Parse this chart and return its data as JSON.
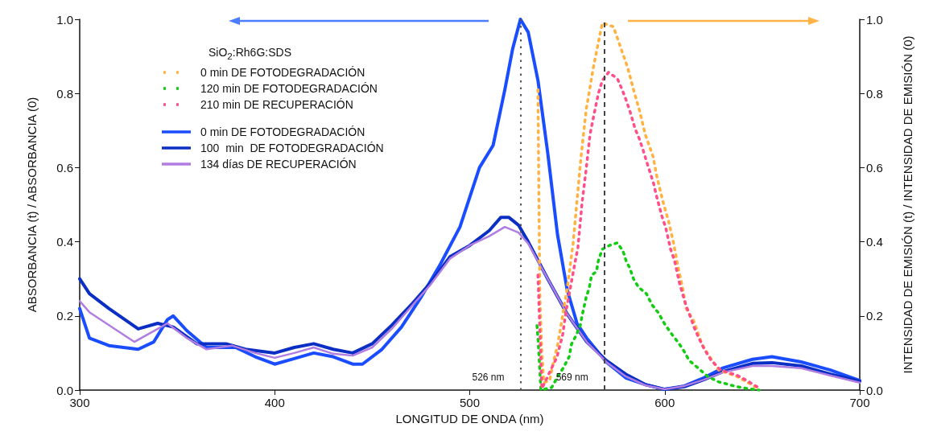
{
  "chart_data": {
    "type": "line",
    "xlabel": "LONGITUD DE ONDA (nm)",
    "ylabel": "ABSORBANCIA (t) / ABSORBANCIA (0)",
    "y2label": "INTENSIDAD DE EMISIÓN (t) / INTENSIDAD DE EMISIÓN (0)",
    "legend_title": "SiO$_{2}$:Rh6G:SDS",
    "legend": "top left",
    "grid": false,
    "marker": "none",
    "xlim": [
      300,
      700
    ],
    "xticks": [
      300,
      400,
      500,
      600,
      700
    ],
    "ylim": [
      0,
      1
    ],
    "yticks": [
      {
        "value": 0,
        "label": "0.0"
      },
      0.2,
      0.4,
      0.6,
      0.8,
      {
        "value": 1,
        "label": "1.0"
      }
    ],
    "y2lim": [
      0,
      1
    ],
    "y2ticks": [
      {
        "value": 0,
        "label": "0.0"
      },
      0.2,
      0.4,
      0.6,
      0.8,
      {
        "value": 1,
        "label": "1.0"
      }
    ],
    "ref_lines": [
      {
        "axis": "x",
        "value": 526,
        "label": "526 nm",
        "line_style": "dotted",
        "color": "#555555"
      },
      {
        "axis": "x",
        "value": 569,
        "label": "569 nm",
        "line_style": "dashed",
        "color": "#444444"
      }
    ],
    "series": [
      {
        "name": "0 min DE FOTODEGRADACIÓN",
        "color": "#ffb240",
        "axis": "y2",
        "line_style": "dotted",
        "x": [
          535,
          535.5,
          536,
          537,
          538,
          541,
          542.7,
          545.2,
          547.3,
          550,
          553,
          555,
          557,
          559.7,
          563.4,
          568,
          573.7,
          577,
          581,
          584,
          587,
          590,
          594,
          596,
          599,
          602,
          604.6,
          606.7,
          609,
          611,
          615,
          619,
          622,
          627.7,
          637,
          642,
          648
        ],
        "values": [
          0.81,
          0.5,
          0.25,
          0.1,
          0.02,
          0.026,
          0.07,
          0.125,
          0.19,
          0.275,
          0.395,
          0.51,
          0.625,
          0.755,
          0.87,
          0.99,
          0.98,
          0.93,
          0.87,
          0.81,
          0.755,
          0.69,
          0.63,
          0.575,
          0.51,
          0.455,
          0.395,
          0.335,
          0.28,
          0.22,
          0.185,
          0.125,
          0.098,
          0.054,
          0.037,
          0.022,
          0.004
        ]
      },
      {
        "name": "120 min DE FOTODEGRADACIÓN",
        "color": "#11cc11",
        "axis": "y2",
        "line_style": "dotted",
        "x": [
          534.5,
          535,
          535.7,
          536.5,
          542,
          545.2,
          548,
          551,
          552.2,
          554.3,
          556.7,
          557.6,
          559.7,
          561.3,
          562.5,
          565,
          566,
          568,
          571.6,
          575.7,
          578.6,
          580.3,
          582,
          584,
          586.5,
          590.6,
          593.5,
          596.8,
          600,
          604,
          607,
          610,
          612.5,
          617,
          622,
          627.7,
          631.5,
          637,
          642.6,
          648.4
        ],
        "values": [
          0.174,
          0.14,
          0.076,
          0,
          0.007,
          0.037,
          0.06,
          0.09,
          0.124,
          0.145,
          0.174,
          0.2,
          0.25,
          0.275,
          0.31,
          0.32,
          0.35,
          0.38,
          0.39,
          0.397,
          0.375,
          0.347,
          0.33,
          0.3,
          0.278,
          0.26,
          0.23,
          0.208,
          0.178,
          0.148,
          0.128,
          0.104,
          0.08,
          0.06,
          0.037,
          0.022,
          0.017,
          0.009,
          0.004,
          0
        ]
      },
      {
        "name": "210 min DE RECUPERACIÓN",
        "color": "#ff4f88",
        "axis": "y2",
        "line_style": "dotted",
        "x": [
          535,
          537,
          544.8,
          547.7,
          549.3,
          551.4,
          553.5,
          555.5,
          557.6,
          559.7,
          561.7,
          563.8,
          566,
          568,
          571.2,
          575.7,
          578.2,
          580,
          582,
          584.8,
          587,
          589,
          590.6,
          594.3,
          595.6,
          598.5,
          600.5,
          603,
          605,
          607.5,
          610.8,
          613,
          615,
          617.5,
          620,
          623.6,
          628.6,
          637,
          642,
          648
        ],
        "values": [
          0.31,
          0.004,
          0.09,
          0.15,
          0.21,
          0.27,
          0.33,
          0.385,
          0.505,
          0.595,
          0.69,
          0.745,
          0.8,
          0.835,
          0.857,
          0.84,
          0.81,
          0.785,
          0.755,
          0.705,
          0.677,
          0.646,
          0.618,
          0.557,
          0.527,
          0.47,
          0.438,
          0.38,
          0.35,
          0.29,
          0.23,
          0.2,
          0.17,
          0.14,
          0.113,
          0.082,
          0.054,
          0.04,
          0.026,
          0.007
        ]
      },
      {
        "name": "0 min DE FOTODEGRADACIÓN",
        "color": "#1a4dff",
        "axis": "y",
        "line_style": "solid",
        "x": [
          300,
          305,
          315,
          330,
          338,
          345,
          348,
          355,
          365,
          380,
          390,
          400,
          410,
          420,
          430,
          440,
          445,
          455,
          465,
          475,
          485,
          495,
          505,
          512,
          518,
          522,
          526,
          530,
          535,
          540,
          545,
          550,
          555,
          560,
          570,
          580,
          590,
          600,
          610,
          620,
          630,
          645,
          655,
          670,
          685,
          700
        ],
        "values": [
          0.22,
          0.14,
          0.12,
          0.11,
          0.13,
          0.19,
          0.2,
          0.16,
          0.115,
          0.115,
          0.09,
          0.07,
          0.085,
          0.1,
          0.09,
          0.07,
          0.07,
          0.11,
          0.17,
          0.25,
          0.34,
          0.44,
          0.6,
          0.66,
          0.81,
          0.92,
          1,
          0.965,
          0.835,
          0.64,
          0.42,
          0.27,
          0.18,
          0.14,
          0.076,
          0.033,
          0.015,
          0.002,
          0.011,
          0.033,
          0.06,
          0.083,
          0.09,
          0.076,
          0.054,
          0.026
        ]
      },
      {
        "name": "100  min  DE FOTODEGRADACIÓN",
        "color": "#0b2fc4",
        "axis": "y",
        "line_style": "solid",
        "x": [
          300,
          305,
          315,
          330,
          340,
          348,
          360,
          375,
          385,
          400,
          410,
          420,
          430,
          440,
          450,
          460,
          470,
          480,
          490,
          500,
          510,
          516,
          520,
          525,
          530,
          540,
          550,
          560,
          570,
          580,
          590,
          600,
          610,
          620,
          630,
          645,
          655,
          670,
          685,
          700
        ],
        "values": [
          0.3,
          0.26,
          0.22,
          0.165,
          0.18,
          0.17,
          0.125,
          0.125,
          0.11,
          0.1,
          0.115,
          0.125,
          0.11,
          0.1,
          0.125,
          0.175,
          0.23,
          0.29,
          0.36,
          0.39,
          0.43,
          0.466,
          0.466,
          0.445,
          0.4,
          0.3,
          0.205,
          0.13,
          0.08,
          0.043,
          0.015,
          0.002,
          0.009,
          0.028,
          0.05,
          0.072,
          0.074,
          0.065,
          0.043,
          0.024
        ]
      },
      {
        "name": "134 días DE RECUPERACIÓN",
        "color": "#b07ee2",
        "axis": "y",
        "line_style": "solid",
        "x": [
          300,
          305,
          315,
          328,
          340,
          345,
          355,
          365,
          378,
          390,
          400,
          410,
          420,
          430,
          440,
          450,
          460,
          470,
          480,
          490,
          500,
          510,
          518,
          525,
          530,
          540,
          550,
          560,
          570,
          580,
          590,
          600,
          610,
          620,
          630,
          645,
          655,
          670,
          685,
          700
        ],
        "values": [
          0.24,
          0.21,
          0.175,
          0.13,
          0.165,
          0.18,
          0.14,
          0.11,
          0.12,
          0.1,
          0.087,
          0.1,
          0.115,
          0.098,
          0.093,
          0.115,
          0.165,
          0.225,
          0.285,
          0.355,
          0.39,
          0.415,
          0.44,
          0.425,
          0.395,
          0.3,
          0.205,
          0.13,
          0.076,
          0.037,
          0.013,
          0.002,
          0.011,
          0.028,
          0.048,
          0.065,
          0.065,
          0.059,
          0.039,
          0.02
        ]
      }
    ]
  }
}
